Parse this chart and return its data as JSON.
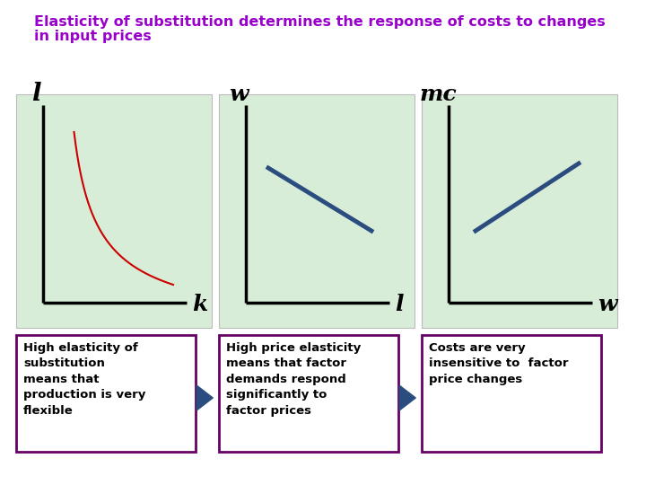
{
  "title_line1": "Elasticity of substitution determines the response of costs to changes",
  "title_line2": "in input prices",
  "title_color": "#9900CC",
  "title_fontsize": 11.5,
  "bg_color": "#FFFFFF",
  "panel_bg_color": "#D8EDD8",
  "panel_border_color": "#AAAAAA",
  "box_border_color": "#660066",
  "arrow_color": "#2B4C7E",
  "text_color": "#000000",
  "box1_text": "High elasticity of\nsubstitution\nmeans that\nproduction is very\nflexible",
  "box2_text": "High price elasticity\nmeans that factor\ndemands respond\nsignificantly to\nfactor prices",
  "box3_text": "Costs are very\ninsensitive to  factor\nprice changes",
  "panel1_label_y": "l",
  "panel1_label_x": "k",
  "panel2_label_y": "w",
  "panel2_label_x": "l",
  "panel3_label_y": "mc",
  "panel3_label_x": "w",
  "curve_color": "#CC0000",
  "line_color": "#2B4C7E"
}
